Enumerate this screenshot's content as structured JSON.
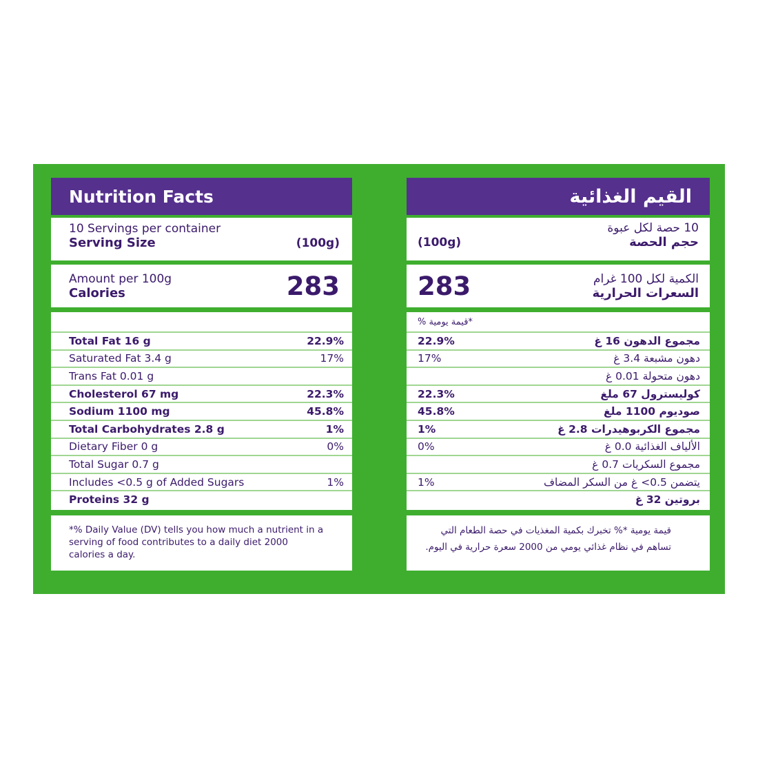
{
  "colors": {
    "frame": "#3fae2f",
    "header": "#55308d",
    "text": "#3b1a6b"
  },
  "english": {
    "title": "Nutrition Facts",
    "servings": "10 Servings per container",
    "serving_size_label": "Serving Size",
    "serving_size_value": "(100g)",
    "amount_label": "Amount per 100g",
    "calories_label": "Calories",
    "calories_value": "283",
    "dv_header": "",
    "rows": [
      {
        "label": "Total Fat 16 g",
        "dv": "22.9%",
        "bold": true
      },
      {
        "label": "Saturated Fat 3.4 g",
        "dv": "17%",
        "bold": false
      },
      {
        "label": "Trans Fat 0.01 g",
        "dv": "",
        "bold": false
      },
      {
        "label": "Cholesterol 67 mg",
        "dv": "22.3%",
        "bold": true
      },
      {
        "label": "Sodium 1100 mg",
        "dv": "45.8%",
        "bold": true
      },
      {
        "label": "Total Carbohydrates 2.8 g",
        "dv": "1%",
        "bold": true
      },
      {
        "label": "Dietary Fiber 0 g",
        "dv": "0%",
        "bold": false
      },
      {
        "label": "Total Sugar 0.7 g",
        "dv": "",
        "bold": false
      },
      {
        "label": "Includes <0.5 g of Added Sugars",
        "dv": "1%",
        "bold": false
      },
      {
        "label": "Proteins 32 g",
        "dv": "",
        "bold": true
      }
    ],
    "footnote": "*% Daily Value (DV) tells you how much a nutrient in a serving of food contributes to a daily diet 2000 calories a day."
  },
  "arabic": {
    "title": "القيم الغذائية",
    "servings": "10 حصة لكل عبوة",
    "serving_size_label": "حجم الحصة",
    "serving_size_value": "(100g)",
    "amount_label": "الكمية لكل 100 غرام",
    "calories_label": "السعرات الحرارية",
    "calories_value": "283",
    "dv_header": "*قيمة يومية %",
    "rows": [
      {
        "label": "مجموع الدهون 16 غ",
        "dv": "22.9%",
        "bold": true
      },
      {
        "label": "دهون مشبعة 3.4 غ",
        "dv": "17%",
        "bold": false
      },
      {
        "label": "دهون متحولة 0.01 غ",
        "dv": "",
        "bold": false
      },
      {
        "label": "كوليسترول 67 ملغ",
        "dv": "22.3%",
        "bold": true
      },
      {
        "label": "صوديوم 1100 ملغ",
        "dv": "45.8%",
        "bold": true
      },
      {
        "label": "مجموع الكربوهيدرات 2.8 غ",
        "dv": "1%",
        "bold": true
      },
      {
        "label": "الألياف الغذائية 0.0 غ",
        "dv": "0%",
        "bold": false
      },
      {
        "label": "مجموع السكريات 0.7 غ",
        "dv": "",
        "bold": false
      },
      {
        "label": "يتضمن 0.5> غ من السكر المضاف",
        "dv": "1%",
        "bold": false
      },
      {
        "label": "بروتين 32 غ",
        "dv": "",
        "bold": true
      }
    ],
    "footnote": "قيمة يومية *% تخبرك بكمية المغذيات في حصة الطعام التي تساهم في نظام غذائي يومي من 2000 سعرة حرارية في اليوم."
  }
}
